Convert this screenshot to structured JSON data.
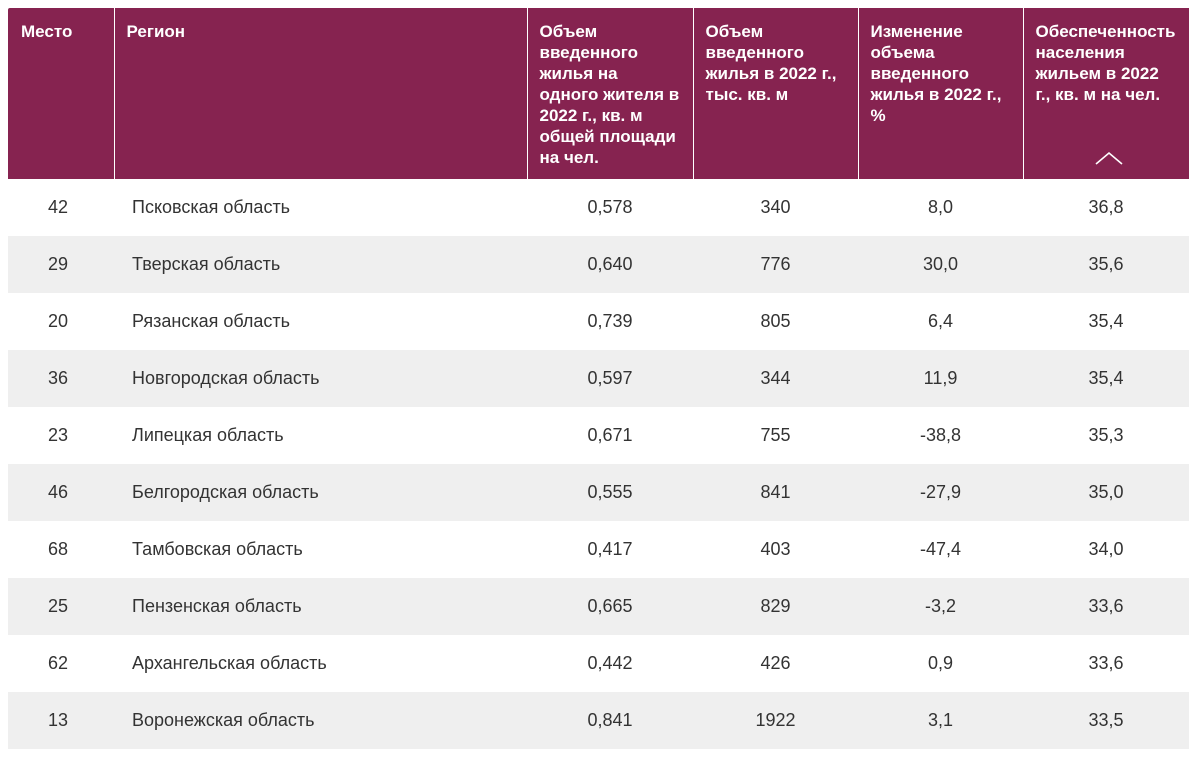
{
  "table": {
    "headers": {
      "rank": "Место",
      "region": "Регион",
      "per_capita": "Объем введенного жилья на одного жителя в 2022 г., кв. м общей площади на чел.",
      "volume": "Объем введенного жилья в 2022 г., тыс. кв. м",
      "change": "Изменение объема введенного жилья в 2022 г., %",
      "provision": "Обеспеченность населения жильем в 2022 г., кв. м на чел."
    },
    "sort": {
      "column": "provision",
      "icon": "chevron-up-icon"
    },
    "colors": {
      "header_bg": "#862350",
      "header_text": "#ffffff",
      "stripe_bg": "#efefef"
    },
    "rows": [
      {
        "rank": "42",
        "region": "Псковская область",
        "per_capita": "0,578",
        "volume": "340",
        "change": "8,0",
        "provision": "36,8"
      },
      {
        "rank": "29",
        "region": "Тверская область",
        "per_capita": "0,640",
        "volume": "776",
        "change": "30,0",
        "provision": "35,6"
      },
      {
        "rank": "20",
        "region": "Рязанская область",
        "per_capita": "0,739",
        "volume": "805",
        "change": "6,4",
        "provision": "35,4"
      },
      {
        "rank": "36",
        "region": "Новгородская область",
        "per_capita": "0,597",
        "volume": "344",
        "change": "11,9",
        "provision": "35,4"
      },
      {
        "rank": "23",
        "region": "Липецкая область",
        "per_capita": "0,671",
        "volume": "755",
        "change": "-38,8",
        "provision": "35,3"
      },
      {
        "rank": "46",
        "region": "Белгородская область",
        "per_capita": "0,555",
        "volume": "841",
        "change": "-27,9",
        "provision": "35,0"
      },
      {
        "rank": "68",
        "region": "Тамбовская область",
        "per_capita": "0,417",
        "volume": "403",
        "change": "-47,4",
        "provision": "34,0"
      },
      {
        "rank": "25",
        "region": "Пензенская область",
        "per_capita": "0,665",
        "volume": "829",
        "change": "-3,2",
        "provision": "33,6"
      },
      {
        "rank": "62",
        "region": "Архангельская область",
        "per_capita": "0,442",
        "volume": "426",
        "change": "0,9",
        "provision": "33,6"
      },
      {
        "rank": "13",
        "region": "Воронежская область",
        "per_capita": "0,841",
        "volume": "1922",
        "change": "3,1",
        "provision": "33,5"
      }
    ]
  }
}
